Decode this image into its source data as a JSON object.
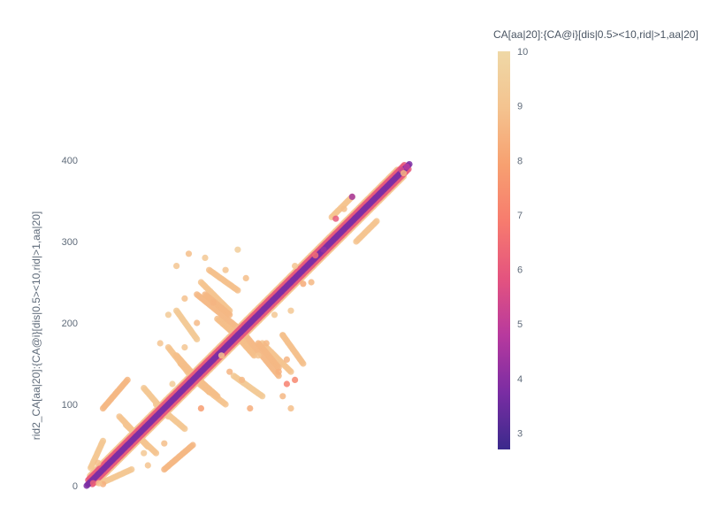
{
  "chart_data": {
    "type": "scatter",
    "title": "",
    "xlabel": "",
    "ylabel": "rid2_CA[aa|20]:{CA@i}[dis|0.5><10,rid|>1,aa|20]",
    "y_ticks": [
      "0",
      "100",
      "200",
      "300",
      "400"
    ],
    "x_ticks": [],
    "xlim": [
      0,
      395
    ],
    "ylim": [
      -5,
      395
    ],
    "colorbar": {
      "title": "CA[aa|20]:{CA@i}[dis|0.5><10,rid|>1,aa|20]",
      "range": [
        2.7,
        10
      ],
      "ticks": [
        "3",
        "4",
        "5",
        "6",
        "7",
        "8",
        "9",
        "10"
      ],
      "colorscale": [
        "#3b2a8c",
        "#7a2da3",
        "#b7399e",
        "#e4537f",
        "#f77b6e",
        "#f7a070",
        "#f4c38f",
        "#efd8a6"
      ]
    },
    "series": [
      {
        "segments": [
          {
            "x1": 0,
            "y1": 0,
            "x2": 395,
            "y2": 395,
            "value": 3.8
          },
          {
            "x1": 2,
            "y1": 7,
            "x2": 392,
            "y2": 397,
            "value": 6.0
          },
          {
            "x1": 7,
            "y1": 2,
            "x2": 397,
            "y2": 392,
            "value": 6.0
          },
          {
            "x1": 4,
            "y1": 12,
            "x2": 380,
            "y2": 388,
            "value": 9.0
          },
          {
            "x1": 12,
            "y1": 4,
            "x2": 388,
            "y2": 380,
            "value": 9.0
          },
          {
            "x1": 5,
            "y1": 22,
            "x2": 20,
            "y2": 55,
            "value": 9.2
          },
          {
            "x1": 22,
            "y1": 5,
            "x2": 55,
            "y2": 20,
            "value": 9.2
          },
          {
            "x1": 20,
            "y1": 95,
            "x2": 50,
            "y2": 130,
            "value": 8.6
          },
          {
            "x1": 95,
            "y1": 20,
            "x2": 130,
            "y2": 50,
            "value": 8.6
          },
          {
            "x1": 40,
            "y1": 85,
            "x2": 75,
            "y2": 48,
            "value": 9.0
          },
          {
            "x1": 85,
            "y1": 40,
            "x2": 48,
            "y2": 75,
            "value": 9.0
          },
          {
            "x1": 70,
            "y1": 120,
            "x2": 100,
            "y2": 85,
            "value": 9.2
          },
          {
            "x1": 120,
            "y1": 70,
            "x2": 85,
            "y2": 100,
            "value": 9.2
          },
          {
            "x1": 100,
            "y1": 170,
            "x2": 125,
            "y2": 138,
            "value": 9.0
          },
          {
            "x1": 170,
            "y1": 100,
            "x2": 138,
            "y2": 125,
            "value": 9.0
          },
          {
            "x1": 115,
            "y1": 150,
            "x2": 160,
            "y2": 110,
            "value": 8.8
          },
          {
            "x1": 150,
            "y1": 115,
            "x2": 110,
            "y2": 160,
            "value": 8.8
          },
          {
            "x1": 140,
            "y1": 250,
            "x2": 175,
            "y2": 215,
            "value": 9.0
          },
          {
            "x1": 250,
            "y1": 140,
            "x2": 215,
            "y2": 175,
            "value": 9.0
          },
          {
            "x1": 135,
            "y1": 235,
            "x2": 190,
            "y2": 190,
            "value": 8.7
          },
          {
            "x1": 235,
            "y1": 135,
            "x2": 190,
            "y2": 190,
            "value": 8.7
          },
          {
            "x1": 150,
            "y1": 265,
            "x2": 185,
            "y2": 240,
            "value": 8.9
          },
          {
            "x1": 265,
            "y1": 150,
            "x2": 240,
            "y2": 185,
            "value": 8.9
          },
          {
            "x1": 110,
            "y1": 215,
            "x2": 135,
            "y2": 180,
            "value": 9.3
          },
          {
            "x1": 215,
            "y1": 110,
            "x2": 180,
            "y2": 135,
            "value": 9.3
          },
          {
            "x1": 160,
            "y1": 205,
            "x2": 205,
            "y2": 165,
            "value": 8.8
          },
          {
            "x1": 205,
            "y1": 160,
            "x2": 165,
            "y2": 205,
            "value": 8.8
          },
          {
            "x1": 210,
            "y1": 175,
            "x2": 235,
            "y2": 145,
            "value": 8.6
          },
          {
            "x1": 175,
            "y1": 210,
            "x2": 145,
            "y2": 235,
            "value": 8.6
          },
          {
            "x1": 300,
            "y1": 330,
            "x2": 325,
            "y2": 355,
            "value": 9.0
          },
          {
            "x1": 330,
            "y1": 300,
            "x2": 355,
            "y2": 325,
            "value": 9.0
          }
        ],
        "points": [
          {
            "x": 8,
            "y": 3,
            "value": 6.2
          },
          {
            "x": 20,
            "y": 2,
            "value": 8.4
          },
          {
            "x": 14,
            "y": 28,
            "value": 8.8
          },
          {
            "x": 15,
            "y": 3,
            "value": 9.0
          },
          {
            "x": 70,
            "y": 40,
            "value": 9.2
          },
          {
            "x": 95,
            "y": 52,
            "value": 8.8
          },
          {
            "x": 75,
            "y": 25,
            "value": 9.0
          },
          {
            "x": 105,
            "y": 125,
            "value": 9.4
          },
          {
            "x": 90,
            "y": 175,
            "value": 9.0
          },
          {
            "x": 110,
            "y": 270,
            "value": 9.1
          },
          {
            "x": 125,
            "y": 285,
            "value": 8.8
          },
          {
            "x": 145,
            "y": 280,
            "value": 9.2
          },
          {
            "x": 120,
            "y": 230,
            "value": 8.9
          },
          {
            "x": 100,
            "y": 210,
            "value": 9.3
          },
          {
            "x": 155,
            "y": 225,
            "value": 8.5
          },
          {
            "x": 170,
            "y": 265,
            "value": 9.0
          },
          {
            "x": 185,
            "y": 290,
            "value": 9.5
          },
          {
            "x": 195,
            "y": 255,
            "value": 8.8
          },
          {
            "x": 165,
            "y": 160,
            "value": 8.9
          },
          {
            "x": 175,
            "y": 140,
            "value": 8.5
          },
          {
            "x": 190,
            "y": 130,
            "value": 8.7
          },
          {
            "x": 210,
            "y": 160,
            "value": 9.0
          },
          {
            "x": 220,
            "y": 175,
            "value": 8.6
          },
          {
            "x": 230,
            "y": 210,
            "value": 9.2
          },
          {
            "x": 240,
            "y": 185,
            "value": 8.9
          },
          {
            "x": 235,
            "y": 140,
            "value": 8.4
          },
          {
            "x": 245,
            "y": 125,
            "value": 7.0
          },
          {
            "x": 250,
            "y": 95,
            "value": 8.8
          },
          {
            "x": 200,
            "y": 95,
            "value": 8.3
          },
          {
            "x": 140,
            "y": 95,
            "value": 7.8
          },
          {
            "x": 120,
            "y": 170,
            "value": 9.1
          },
          {
            "x": 135,
            "y": 200,
            "value": 8.7
          },
          {
            "x": 255,
            "y": 270,
            "value": 9.0
          },
          {
            "x": 265,
            "y": 248,
            "value": 8.2
          },
          {
            "x": 275,
            "y": 250,
            "value": 8.6
          },
          {
            "x": 250,
            "y": 215,
            "value": 9.2
          },
          {
            "x": 245,
            "y": 155,
            "value": 8.5
          },
          {
            "x": 255,
            "y": 130,
            "value": 7.2
          },
          {
            "x": 240,
            "y": 110,
            "value": 8.6
          },
          {
            "x": 325,
            "y": 355,
            "value": 4.5
          },
          {
            "x": 305,
            "y": 328,
            "value": 6.0
          },
          {
            "x": 315,
            "y": 340,
            "value": 8.8
          },
          {
            "x": 385,
            "y": 388,
            "value": 5.5
          },
          {
            "x": 392,
            "y": 392,
            "value": 4.8
          },
          {
            "x": 388,
            "y": 384,
            "value": 8.5
          },
          {
            "x": 290,
            "y": 290,
            "value": 4.2
          },
          {
            "x": 280,
            "y": 283,
            "value": 6.5
          }
        ]
      }
    ]
  }
}
